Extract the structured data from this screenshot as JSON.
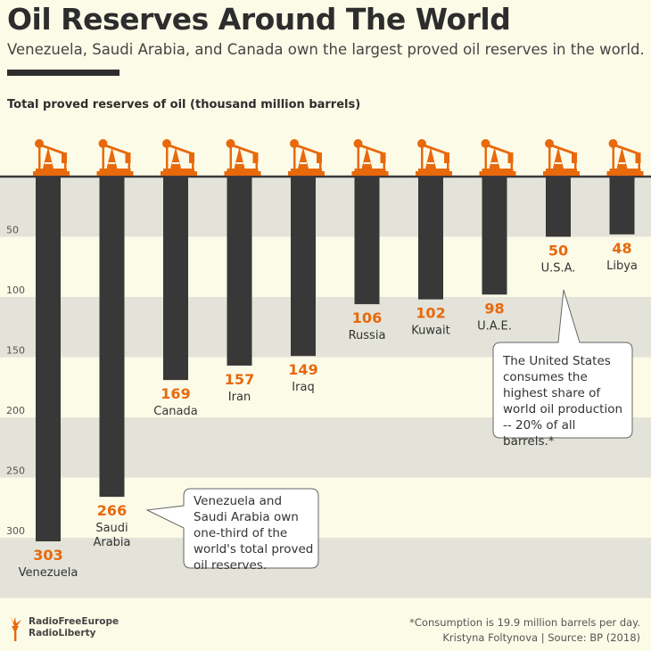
{
  "header": {
    "title": "Oil Reserves Around The World",
    "subtitle": "Venezuela, Saudi Arabia, and Canada own the largest proved oil reserves in the world."
  },
  "chart_data": {
    "type": "bar",
    "orientation": "downward",
    "ylabel": "Total proved reserves of oil (thousand million barrels)",
    "categories": [
      "Venezuela",
      "Saudi Arabia",
      "Canada",
      "Iran",
      "Iraq",
      "Russia",
      "Kuwait",
      "U.A.E.",
      "U.S.A.",
      "Libya"
    ],
    "values": [
      303,
      266,
      169,
      157,
      149,
      106,
      102,
      98,
      50,
      48
    ],
    "yticks": [
      50,
      100,
      150,
      200,
      250,
      300
    ],
    "ylim": [
      0,
      350
    ],
    "grid": "alternating bands",
    "colors": {
      "bar": "#383838",
      "value_label": "#e8690c",
      "icon": "#e8690c",
      "band": "#e3e3d9",
      "background": "#fcfbe8"
    },
    "icon": "oil-pumpjack-icon",
    "annotations": [
      {
        "target": "U.S.A.",
        "text": "The United States consumes the highest share of world oil production -- 20% of all barrels.*"
      },
      {
        "target": "Saudi Arabia",
        "text": "Venezuela and Saudi Arabia own one-third of the world's total proved oil reserves."
      }
    ]
  },
  "footer": {
    "logo": "RadioFreeEurope RadioLiberty",
    "logo_line1": "RadioFreeEurope",
    "logo_line2": "RadioLiberty",
    "note": "*Consumption is 19.9 million barrels per day.",
    "credit": "Kristyna Foltynova | Source: BP (2018)"
  }
}
